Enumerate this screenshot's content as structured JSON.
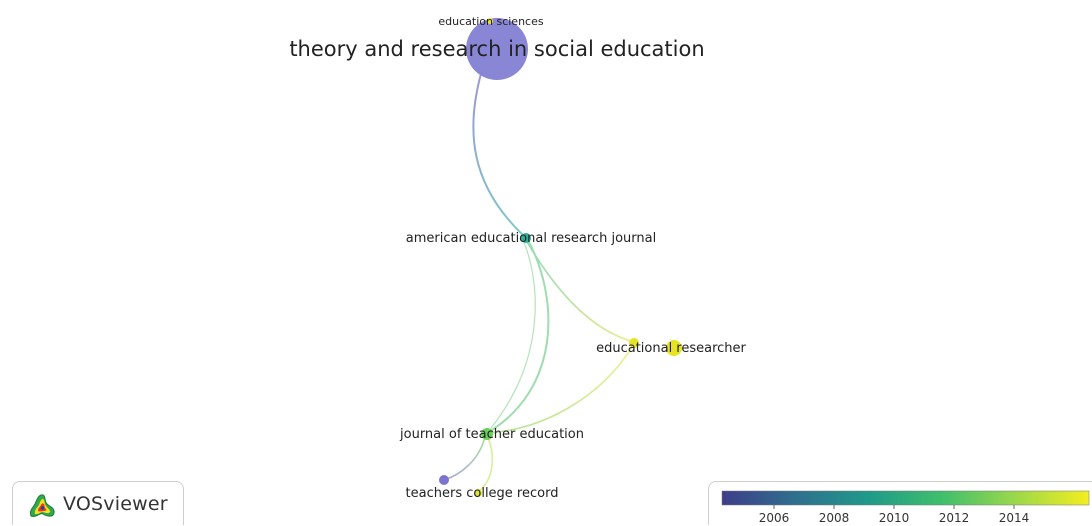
{
  "network": {
    "nodes": [
      {
        "id": "tarse",
        "label": "theory and research in social education",
        "color": "#8a86d6"
      },
      {
        "id": "es",
        "label": "education sciences",
        "color": "#e9e227"
      },
      {
        "id": "aerj",
        "label": "american educational research journal",
        "color": "#2bb09a"
      },
      {
        "id": "er",
        "label": "educational researcher",
        "color": "#e6e324"
      },
      {
        "id": "jte",
        "label": "journal of teacher education",
        "color": "#6ccf5a"
      },
      {
        "id": "tcr",
        "label": "teachers college record",
        "color": "#7b75cf"
      }
    ],
    "edges": [
      {
        "from": "tarse",
        "to": "aerj"
      },
      {
        "from": "aerj",
        "to": "er"
      },
      {
        "from": "aerj",
        "to": "jte"
      },
      {
        "from": "er",
        "to": "jte"
      },
      {
        "from": "jte",
        "to": "tcr"
      },
      {
        "from": "jte",
        "to": "tcr-label"
      }
    ]
  },
  "logo": {
    "text": "VOSviewer"
  },
  "legend": {
    "gradient": [
      "#3e3d8a",
      "#2f6f8e",
      "#1f9a8a",
      "#3fbf6c",
      "#9bd84a",
      "#f5ee1e"
    ],
    "ticks": [
      "2006",
      "2008",
      "2010",
      "2012",
      "2014"
    ]
  }
}
